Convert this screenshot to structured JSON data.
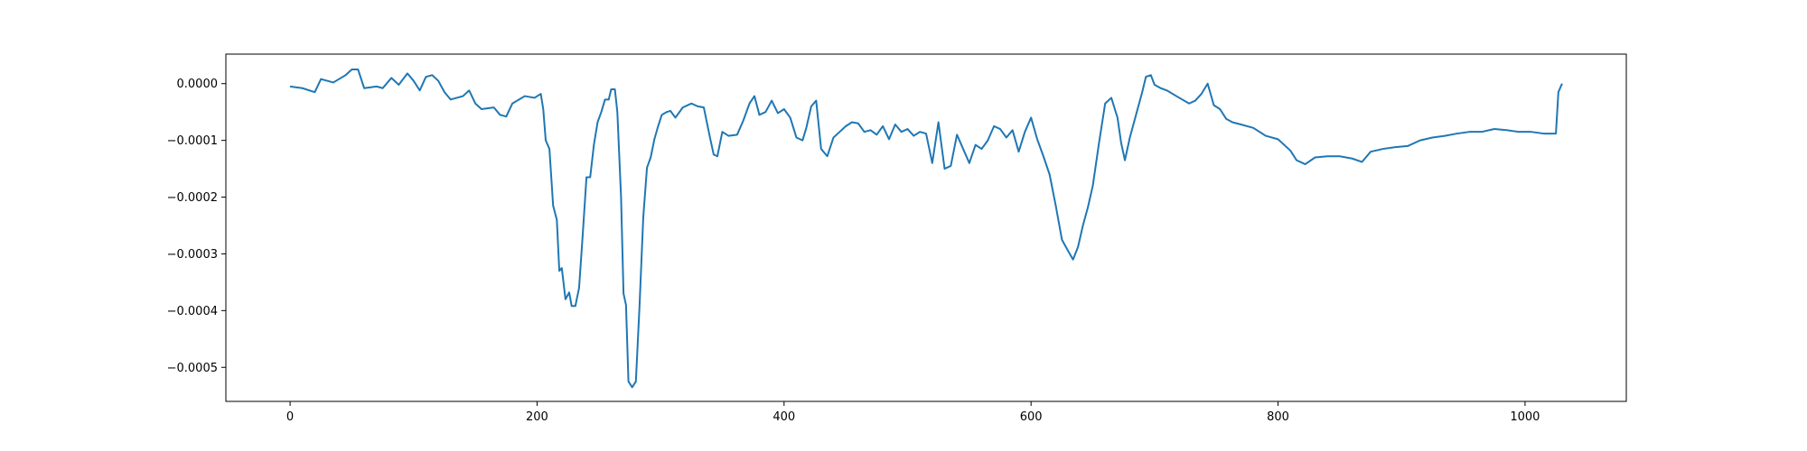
{
  "chart_data": {
    "type": "line",
    "title": "",
    "xlabel": "",
    "ylabel": "",
    "xlim": [
      -52,
      1082
    ],
    "ylim": [
      -0.00056,
      5.2e-05
    ],
    "grid": false,
    "legend": "none",
    "xticks": [
      0,
      200,
      400,
      600,
      800,
      1000
    ],
    "xtick_labels": [
      "0",
      "200",
      "400",
      "600",
      "800",
      "1000"
    ],
    "yticks": [
      0.0,
      -0.0001,
      -0.0002,
      -0.0003,
      -0.0004,
      -0.0005
    ],
    "ytick_labels": [
      "0.0000",
      "−0.0001",
      "−0.0002",
      "−0.0003",
      "−0.0004",
      "−0.0005"
    ],
    "series": [
      {
        "color": "#1f77b4",
        "points": [
          [
            0,
            -5e-06
          ],
          [
            10,
            -8e-06
          ],
          [
            20,
            -1.5e-05
          ],
          [
            25,
            8e-06
          ],
          [
            35,
            2e-06
          ],
          [
            45,
            1.5e-05
          ],
          [
            50,
            2.5e-05
          ],
          [
            55,
            2.5e-05
          ],
          [
            60,
            -8e-06
          ],
          [
            70,
            -5e-06
          ],
          [
            75,
            -8e-06
          ],
          [
            82,
            1e-05
          ],
          [
            88,
            -2e-06
          ],
          [
            95,
            1.8e-05
          ],
          [
            100,
            5e-06
          ],
          [
            105,
            -1.2e-05
          ],
          [
            110,
            1.2e-05
          ],
          [
            115,
            1.5e-05
          ],
          [
            120,
            5e-06
          ],
          [
            125,
            -1.5e-05
          ],
          [
            130,
            -2.8e-05
          ],
          [
            140,
            -2.2e-05
          ],
          [
            145,
            -1.2e-05
          ],
          [
            150,
            -3.5e-05
          ],
          [
            155,
            -4.5e-05
          ],
          [
            165,
            -4.2e-05
          ],
          [
            170,
            -5.5e-05
          ],
          [
            175,
            -5.8e-05
          ],
          [
            180,
            -3.5e-05
          ],
          [
            190,
            -2.2e-05
          ],
          [
            198,
            -2.5e-05
          ],
          [
            203,
            -1.8e-05
          ],
          [
            205,
            -4.5e-05
          ],
          [
            207,
            -0.0001
          ],
          [
            210,
            -0.000115
          ],
          [
            213,
            -0.000215
          ],
          [
            216,
            -0.00024
          ],
          [
            218,
            -0.00033
          ],
          [
            220,
            -0.000325
          ],
          [
            223,
            -0.00038
          ],
          [
            226,
            -0.000368
          ],
          [
            228,
            -0.000392
          ],
          [
            231,
            -0.000392
          ],
          [
            234,
            -0.00036
          ],
          [
            237,
            -0.000265
          ],
          [
            240,
            -0.000165
          ],
          [
            243,
            -0.000165
          ],
          [
            246,
            -0.000108
          ],
          [
            249,
            -6.8e-05
          ],
          [
            252,
            -5e-05
          ],
          [
            255,
            -2.8e-05
          ],
          [
            258,
            -2.8e-05
          ],
          [
            260,
            -1e-05
          ],
          [
            263,
            -1e-05
          ],
          [
            265,
            -5e-05
          ],
          [
            268,
            -0.0002
          ],
          [
            270,
            -0.00037
          ],
          [
            272,
            -0.00039
          ],
          [
            274,
            -0.000525
          ],
          [
            277,
            -0.000535
          ],
          [
            280,
            -0.000525
          ],
          [
            283,
            -0.00039
          ],
          [
            286,
            -0.000235
          ],
          [
            289,
            -0.000148
          ],
          [
            292,
            -0.00013
          ],
          [
            295,
            -9.8e-05
          ],
          [
            298,
            -7.5e-05
          ],
          [
            301,
            -5.5e-05
          ],
          [
            305,
            -5e-05
          ],
          [
            308,
            -4.8e-05
          ],
          [
            312,
            -6e-05
          ],
          [
            318,
            -4.2e-05
          ],
          [
            325,
            -3.5e-05
          ],
          [
            330,
            -4e-05
          ],
          [
            335,
            -4.2e-05
          ],
          [
            340,
            -9.5e-05
          ],
          [
            343,
            -0.000125
          ],
          [
            346,
            -0.000128
          ],
          [
            350,
            -8.5e-05
          ],
          [
            355,
            -9.2e-05
          ],
          [
            362,
            -9e-05
          ],
          [
            367,
            -6.5e-05
          ],
          [
            372,
            -3.5e-05
          ],
          [
            376,
            -2.2e-05
          ],
          [
            380,
            -5.5e-05
          ],
          [
            385,
            -5e-05
          ],
          [
            390,
            -3e-05
          ],
          [
            395,
            -5.2e-05
          ],
          [
            400,
            -4.5e-05
          ],
          [
            405,
            -6e-05
          ],
          [
            410,
            -9.5e-05
          ],
          [
            415,
            -0.0001
          ],
          [
            418,
            -7.8e-05
          ],
          [
            422,
            -4e-05
          ],
          [
            426,
            -3e-05
          ],
          [
            430,
            -0.000115
          ],
          [
            435,
            -0.000128
          ],
          [
            440,
            -9.5e-05
          ],
          [
            445,
            -8.5e-05
          ],
          [
            450,
            -7.5e-05
          ],
          [
            455,
            -6.8e-05
          ],
          [
            460,
            -7e-05
          ],
          [
            465,
            -8.5e-05
          ],
          [
            470,
            -8.2e-05
          ],
          [
            475,
            -9e-05
          ],
          [
            480,
            -7.5e-05
          ],
          [
            485,
            -9.8e-05
          ],
          [
            490,
            -7.2e-05
          ],
          [
            495,
            -8.5e-05
          ],
          [
            500,
            -8e-05
          ],
          [
            505,
            -9.2e-05
          ],
          [
            510,
            -8.5e-05
          ],
          [
            515,
            -8.8e-05
          ],
          [
            520,
            -0.00014
          ],
          [
            525,
            -6.8e-05
          ],
          [
            530,
            -0.00015
          ],
          [
            535,
            -0.000145
          ],
          [
            540,
            -9e-05
          ],
          [
            545,
            -0.000115
          ],
          [
            550,
            -0.00014
          ],
          [
            555,
            -0.000108
          ],
          [
            560,
            -0.000115
          ],
          [
            565,
            -0.0001
          ],
          [
            570,
            -7.5e-05
          ],
          [
            575,
            -8e-05
          ],
          [
            580,
            -9.5e-05
          ],
          [
            585,
            -8.2e-05
          ],
          [
            590,
            -0.00012
          ],
          [
            595,
            -8.5e-05
          ],
          [
            600,
            -6e-05
          ],
          [
            605,
            -9.8e-05
          ],
          [
            610,
            -0.000128
          ],
          [
            615,
            -0.00016
          ],
          [
            620,
            -0.000215
          ],
          [
            625,
            -0.000275
          ],
          [
            630,
            -0.000295
          ],
          [
            634,
            -0.00031
          ],
          [
            638,
            -0.000288
          ],
          [
            642,
            -0.00025
          ],
          [
            646,
            -0.000218
          ],
          [
            650,
            -0.00018
          ],
          [
            655,
            -0.000105
          ],
          [
            660,
            -3.5e-05
          ],
          [
            665,
            -2.5e-05
          ],
          [
            670,
            -6e-05
          ],
          [
            673,
            -0.000105
          ],
          [
            676,
            -0.000135
          ],
          [
            680,
            -9.5e-05
          ],
          [
            685,
            -5.5e-05
          ],
          [
            690,
            -1.5e-05
          ],
          [
            693,
            1.2e-05
          ],
          [
            697,
            1.5e-05
          ],
          [
            700,
            -2e-06
          ],
          [
            705,
            -8e-06
          ],
          [
            710,
            -1.2e-05
          ],
          [
            720,
            -2.5e-05
          ],
          [
            728,
            -3.5e-05
          ],
          [
            733,
            -3e-05
          ],
          [
            738,
            -1.8e-05
          ],
          [
            743,
            0.0
          ],
          [
            748,
            -3.8e-05
          ],
          [
            753,
            -4.5e-05
          ],
          [
            758,
            -6.2e-05
          ],
          [
            763,
            -6.8e-05
          ],
          [
            770,
            -7.2e-05
          ],
          [
            780,
            -7.8e-05
          ],
          [
            790,
            -9.2e-05
          ],
          [
            800,
            -9.8e-05
          ],
          [
            810,
            -0.000118
          ],
          [
            815,
            -0.000135
          ],
          [
            822,
            -0.000142
          ],
          [
            830,
            -0.00013
          ],
          [
            840,
            -0.000128
          ],
          [
            850,
            -0.000128
          ],
          [
            860,
            -0.000132
          ],
          [
            868,
            -0.000138
          ],
          [
            875,
            -0.00012
          ],
          [
            885,
            -0.000115
          ],
          [
            895,
            -0.000112
          ],
          [
            905,
            -0.00011
          ],
          [
            915,
            -0.0001
          ],
          [
            925,
            -9.5e-05
          ],
          [
            935,
            -9.2e-05
          ],
          [
            945,
            -8.8e-05
          ],
          [
            955,
            -8.5e-05
          ],
          [
            965,
            -8.5e-05
          ],
          [
            975,
            -8e-05
          ],
          [
            985,
            -8.2e-05
          ],
          [
            995,
            -8.5e-05
          ],
          [
            1005,
            -8.5e-05
          ],
          [
            1015,
            -8.8e-05
          ],
          [
            1025,
            -8.8e-05
          ],
          [
            1027,
            -1.5e-05
          ],
          [
            1030,
            0.0
          ]
        ]
      }
    ]
  }
}
